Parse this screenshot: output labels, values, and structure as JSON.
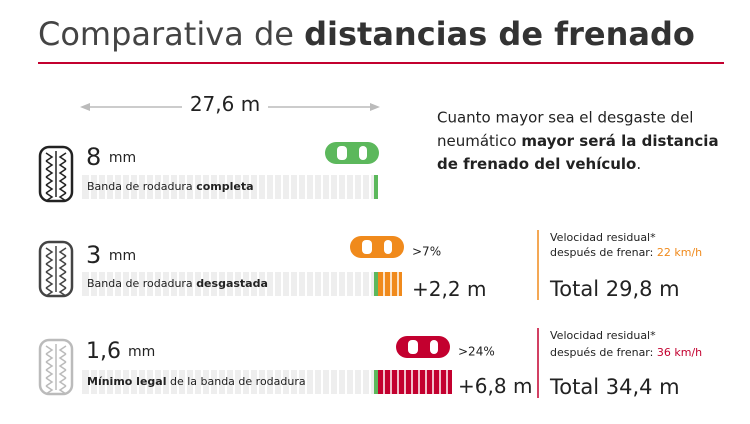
{
  "title": {
    "light": "Comparativa de",
    "bold": "distancias de frenado"
  },
  "distance": {
    "value": "27,6",
    "unit": "m"
  },
  "note": {
    "line1": "Cuanto mayor sea el desgaste del",
    "line2_normal": "neumático",
    "line2_bold": "mayor será la distancia",
    "line3_bold": "de frenado del vehículo",
    "line3_end": "."
  },
  "rows": [
    {
      "depth": "8",
      "unit": "mm",
      "label": [
        {
          "text": "Banda de rodadura"
        },
        {
          "text": "completa",
          "bold": true
        }
      ]
    },
    {
      "depth": "3",
      "unit": "mm",
      "label": [
        {
          "text": "Banda de rodadura"
        },
        {
          "text": "desgastada",
          "bold": true
        }
      ],
      "percent": ">7%",
      "extra": "+2,2",
      "extra_unit": "m",
      "residual_line1": "Velocidad residual*",
      "residual_line2": "después de frenar:",
      "speed": "22 km/h",
      "total": "Total 29,8 m"
    },
    {
      "depth": "1,6",
      "unit": "mm",
      "label": [
        {
          "text": "Mínimo legal",
          "bold": true
        },
        {
          "text": "de la banda de rodadura"
        }
      ],
      "percent": ">24%",
      "extra": "+6,8",
      "extra_unit": "m",
      "residual_line1": "Velocidad residual*",
      "residual_line2": "después de frenar:",
      "speed": "36 km/h",
      "total": "Total 34,4 m"
    }
  ]
}
